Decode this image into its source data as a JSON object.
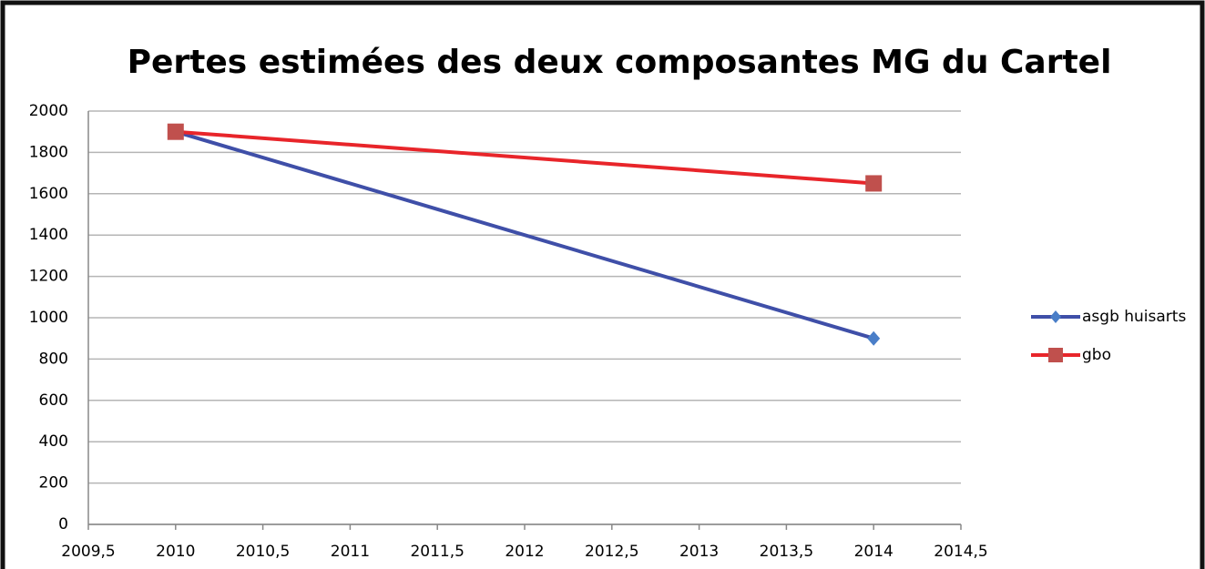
{
  "chart_data": {
    "type": "line",
    "title": "Pertes estimées des deux composantes MG du Cartel",
    "x": [
      2010,
      2014
    ],
    "series": [
      {
        "name": "asgb huisarts",
        "color": "#3f4fa8",
        "marker_color": "#4a7ec8",
        "marker": "diamond",
        "values": [
          1900,
          900
        ]
      },
      {
        "name": "gbo",
        "color": "#e8252a",
        "marker_color": "#c0504d",
        "marker": "square",
        "values": [
          1900,
          1650
        ]
      }
    ],
    "xlim": [
      2009.5,
      2014.5
    ],
    "xticks": [
      {
        "value": 2009.5,
        "label": "2009,5"
      },
      2010,
      {
        "value": 2010.5,
        "label": "2010,5"
      },
      2011,
      {
        "value": 2011.5,
        "label": "2011,5"
      },
      2012,
      {
        "value": 2012.5,
        "label": "2012,5"
      },
      2013,
      {
        "value": 2013.5,
        "label": "2013,5"
      },
      2014,
      {
        "value": 2014.5,
        "label": "2014,5"
      }
    ],
    "ylim": [
      0,
      2000
    ],
    "yticks": [
      0,
      200,
      400,
      600,
      800,
      1000,
      1200,
      1400,
      1600,
      1800,
      2000
    ],
    "grid": true,
    "legend": "right"
  }
}
